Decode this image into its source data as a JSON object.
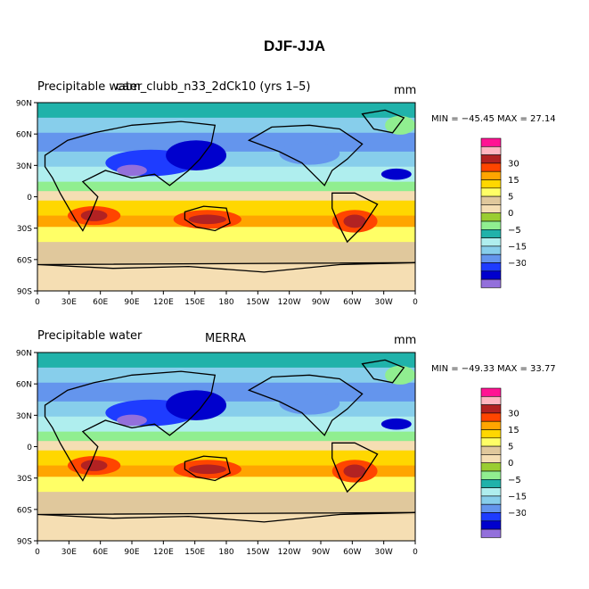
{
  "page_title": "DJF-JJA",
  "panels": [
    {
      "left_title": "Precipitable water",
      "center_title": "cam_clubb_n33_2dCk10 (yrs 1–5)",
      "units": "mm",
      "stats": "MIN = −45.45 MAX =  27.14"
    },
    {
      "left_title": "Precipitable water",
      "center_title": "MERRA",
      "units": "mm",
      "stats": "MIN = −49.33 MAX =  33.77"
    }
  ],
  "lat_ticks": [
    "90N",
    "60N",
    "30N",
    "0",
    "30S",
    "60S",
    "90S"
  ],
  "lon_ticks": [
    "0",
    "30E",
    "60E",
    "90E",
    "120E",
    "150E",
    "180",
    "150W",
    "120W",
    "90W",
    "60W",
    "30W",
    "0"
  ],
  "colorbar": {
    "labels": [
      "30",
      "15",
      "5",
      "0",
      "−5",
      "−15",
      "−30"
    ],
    "colors": [
      "#ff1493",
      "#ffb6c1",
      "#b22222",
      "#ff4500",
      "#ffa500",
      "#ffd700",
      "#ffff66",
      "#e0c89c",
      "#f5deb3",
      "#9acd32",
      "#90ee90",
      "#20b2aa",
      "#afeeee",
      "#87ceeb",
      "#6495ed",
      "#1e3cff",
      "#0000cd",
      "#9370db"
    ]
  }
}
